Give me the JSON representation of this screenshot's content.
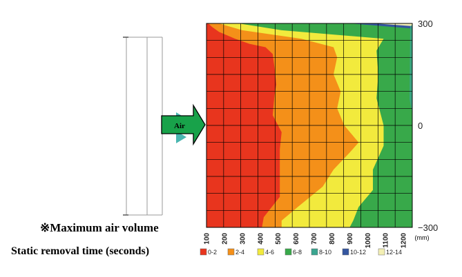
{
  "chart_data": {
    "type": "heatmap",
    "title": "",
    "xlabel": "",
    "ylabel": "",
    "unit": "(mm)",
    "x_ticks": [
      "100",
      "200",
      "300",
      "400",
      "500",
      "600",
      "700",
      "800",
      "900",
      "1000",
      "1100",
      "1200"
    ],
    "y_ticks": [
      {
        "label": "300",
        "value": 300
      },
      {
        "label": "0",
        "value": 0
      },
      {
        "label": "−300",
        "value": -300
      }
    ],
    "xlim": [
      50,
      1200
    ],
    "ylim": [
      -300,
      300
    ],
    "grid": true,
    "grid_rows": 12,
    "grid_cols": 12,
    "legend_position": "bottom",
    "legend": [
      {
        "label": "0-2",
        "color": "#e8351e"
      },
      {
        "label": "2-4",
        "color": "#f49019"
      },
      {
        "label": "4-6",
        "color": "#f2ea3d"
      },
      {
        "label": "6-8",
        "color": "#38a94a"
      },
      {
        "label": "8-10",
        "color": "#3aa590"
      },
      {
        "label": "10-12",
        "color": "#3456a0"
      },
      {
        "label": "12-14",
        "color": "#f3efb4"
      }
    ],
    "boundaries": [
      {
        "band": "0-2",
        "x_at_y": [
          [
            300,
            60
          ],
          [
            290,
            80
          ],
          [
            275,
            120
          ],
          [
            255,
            210
          ],
          [
            240,
            290
          ],
          [
            230,
            380
          ],
          [
            210,
            420
          ],
          [
            170,
            430
          ],
          [
            120,
            440
          ],
          [
            90,
            430
          ],
          [
            30,
            420
          ],
          [
            -20,
            470
          ],
          [
            -70,
            460
          ],
          [
            -150,
            460
          ],
          [
            -210,
            460
          ],
          [
            -250,
            400
          ],
          [
            -270,
            370
          ],
          [
            -300,
            360
          ]
        ]
      },
      {
        "band": "2-4",
        "x_at_y": [
          [
            300,
            120
          ],
          [
            280,
            250
          ],
          [
            255,
            580
          ],
          [
            230,
            760
          ],
          [
            200,
            780
          ],
          [
            150,
            760
          ],
          [
            100,
            800
          ],
          [
            50,
            780
          ],
          [
            0,
            820
          ],
          [
            -50,
            900
          ],
          [
            -80,
            850
          ],
          [
            -130,
            760
          ],
          [
            -180,
            700
          ],
          [
            -240,
            560
          ],
          [
            -280,
            470
          ],
          [
            -300,
            470
          ]
        ]
      },
      {
        "band": "4-6",
        "x_at_y": [
          [
            300,
            230
          ],
          [
            280,
            470
          ],
          [
            255,
            1040
          ],
          [
            220,
            1000
          ],
          [
            150,
            1010
          ],
          [
            80,
            1000
          ],
          [
            0,
            1040
          ],
          [
            -60,
            1040
          ],
          [
            -130,
            980
          ],
          [
            -190,
            980
          ],
          [
            -240,
            900
          ],
          [
            -280,
            870
          ],
          [
            -300,
            850
          ]
        ]
      },
      {
        "band": "6-8",
        "x_at_y": [
          [
            300,
            400
          ],
          [
            295,
            800
          ],
          [
            280,
            1150
          ],
          [
            262,
            1200
          ]
        ]
      },
      {
        "band": "10-12",
        "x_at_y": [
          [
            300,
            850
          ],
          [
            285,
            1200
          ]
        ]
      },
      {
        "band": "12-14",
        "x_at_y": [
          [
            300,
            990
          ],
          [
            292,
            1200
          ]
        ]
      }
    ],
    "band_order": [
      "12-14",
      "10-12",
      "6-8",
      "4-6",
      "2-4",
      "0-2"
    ],
    "accent_band": "8-10"
  },
  "diagram": {
    "arrow_label": "Air"
  },
  "notes": {
    "max_air_volume": "※Maximum air volume",
    "static_removal_time": "Static removal time (seconds)"
  }
}
